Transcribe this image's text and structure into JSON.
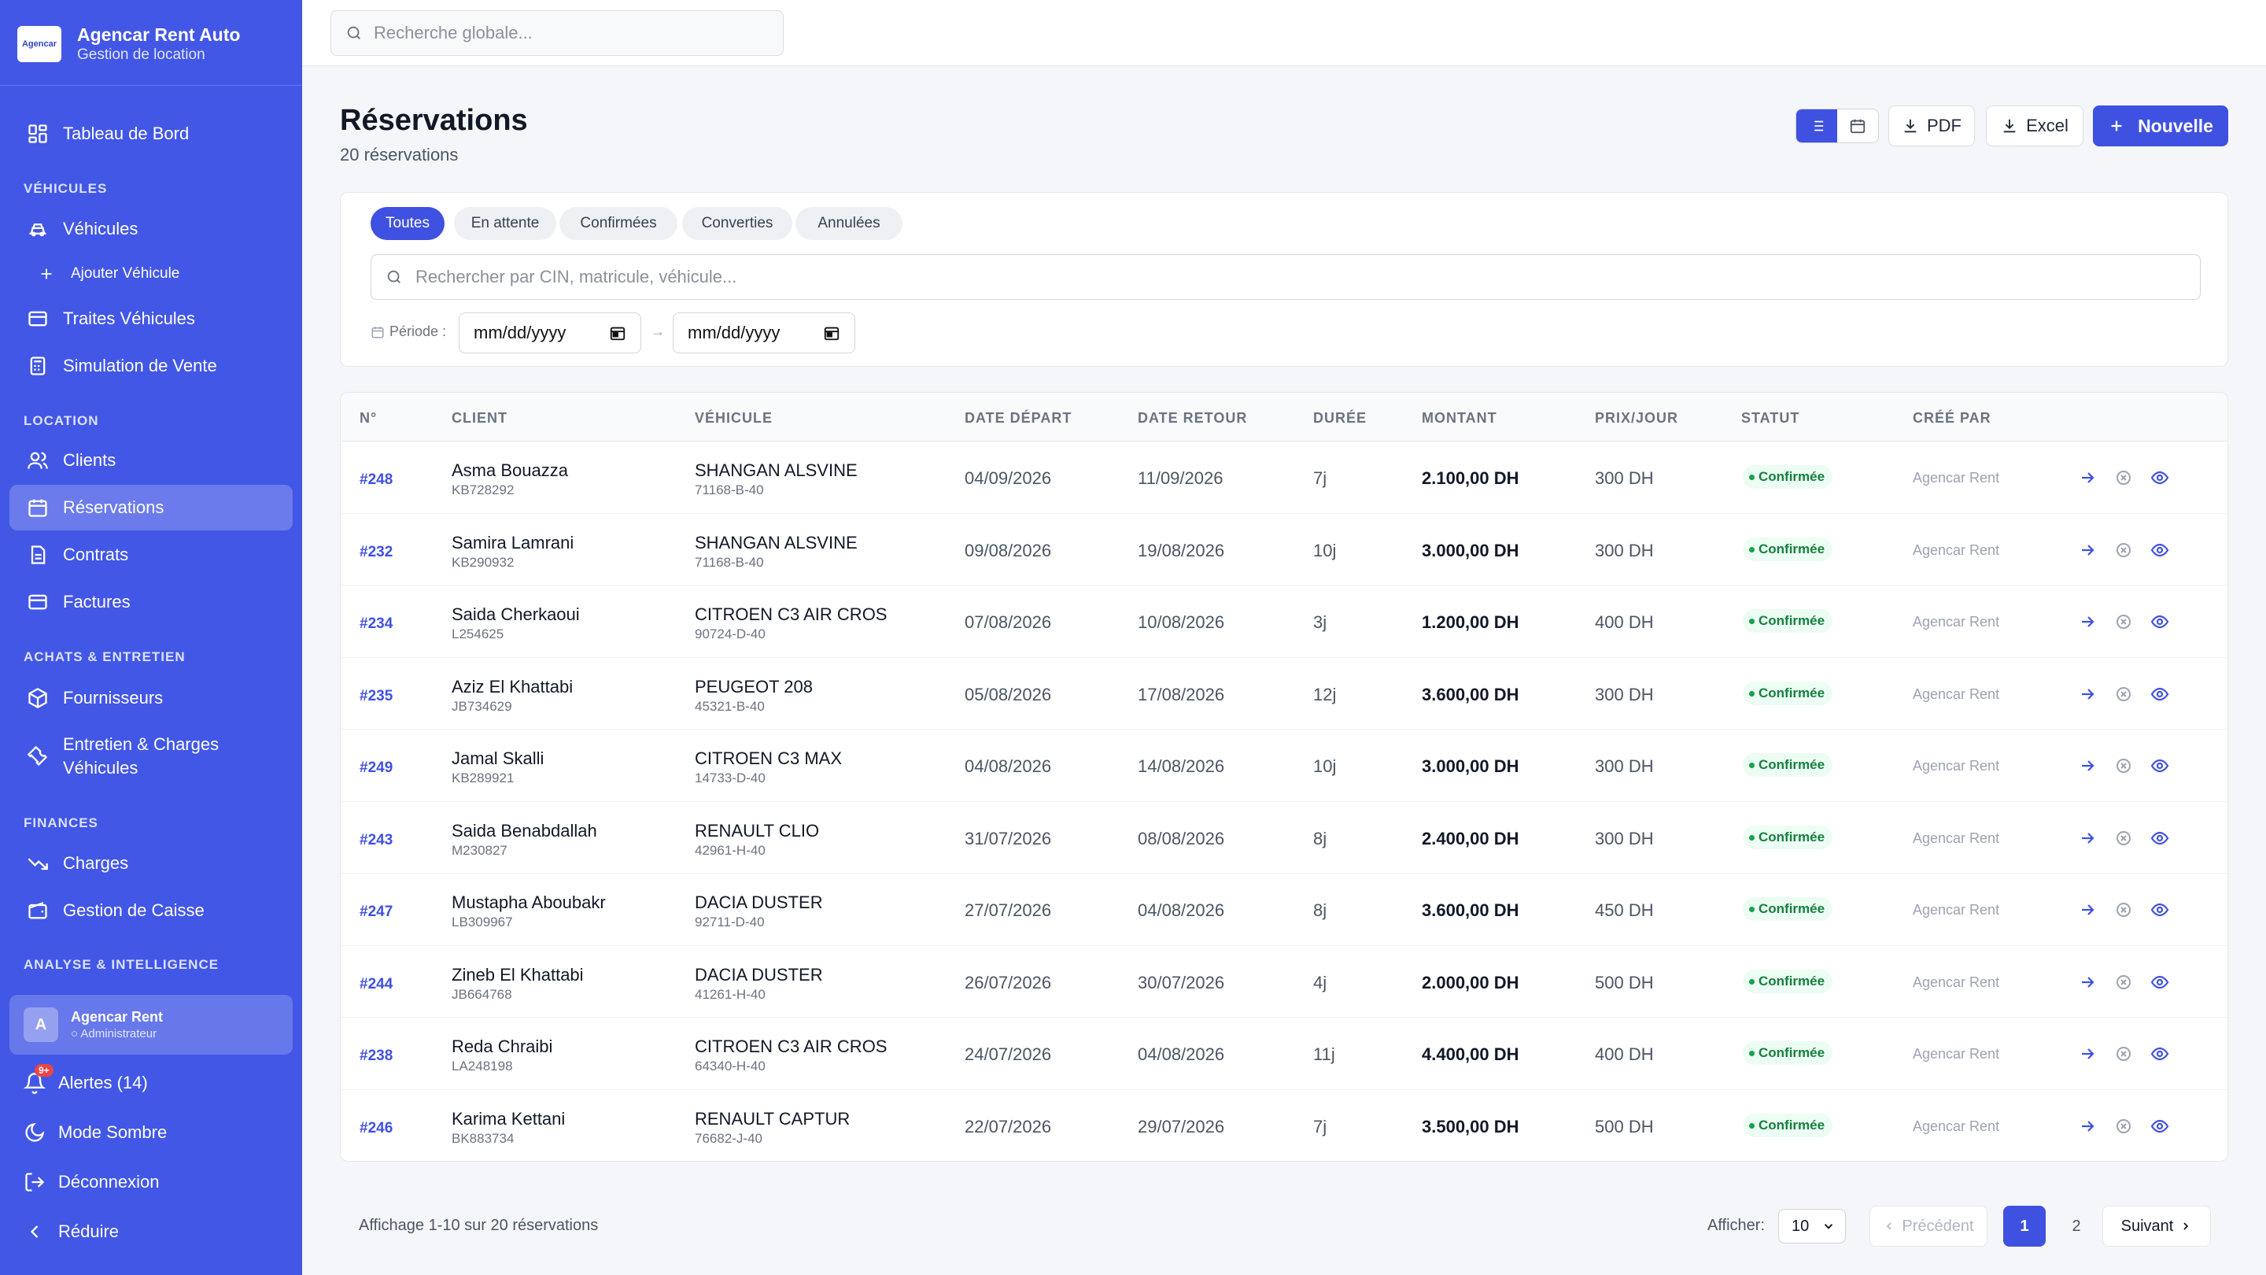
{
  "brand": {
    "title": "Agencar Rent Auto",
    "subtitle": "Gestion de location",
    "logo_text": "Agencar"
  },
  "sidebar": {
    "dashboard": "Tableau de Bord",
    "sections": {
      "vehicles": "VÉHICULES",
      "location": "LOCATION",
      "purchases": "ACHATS & ENTRETIEN",
      "finances": "FINANCES",
      "analytics": "ANALYSE & INTELLIGENCE"
    },
    "items": {
      "vehicles": "Véhicules",
      "add_vehicle": "Ajouter Véhicule",
      "traites": "Traites Véhicules",
      "simulation": "Simulation de Vente",
      "clients": "Clients",
      "reservations": "Réservations",
      "contracts": "Contrats",
      "invoices": "Factures",
      "suppliers": "Fournisseurs",
      "maintenance_line1": "Entretien & Charges",
      "maintenance_line2": "Véhicules",
      "charges": "Charges",
      "cash": "Gestion de Caisse"
    },
    "user": {
      "initial": "A",
      "name": "Agencar Rent",
      "role": "Administrateur"
    },
    "alerts": "Alertes (14)",
    "alerts_badge": "9+",
    "dark_mode": "Mode Sombre",
    "logout": "Déconnexion",
    "collapse": "Réduire"
  },
  "topbar": {
    "search_placeholder": "Recherche globale..."
  },
  "page": {
    "title": "Réservations",
    "subtitle": "20 réservations",
    "pdf": "PDF",
    "excel": "Excel",
    "new": "Nouvelle"
  },
  "filters": {
    "tabs": [
      "Toutes",
      "En attente",
      "Confirmées",
      "Converties",
      "Annulées"
    ],
    "active_tab": "Toutes",
    "search_placeholder": "Rechercher par CIN, matricule, véhicule...",
    "period_label": "Période :",
    "date_from": "mm/dd/yyyy",
    "date_to": "mm/dd/yyyy",
    "arrow": "→"
  },
  "table": {
    "columns": [
      "N°",
      "CLIENT",
      "VÉHICULE",
      "DATE DÉPART",
      "DATE RETOUR",
      "DURÉE",
      "MONTANT",
      "PRIX/JOUR",
      "STATUT",
      "CRÉÉ PAR"
    ],
    "rows": [
      {
        "num": "#248",
        "client": "Asma Bouazza",
        "cin": "KB728292",
        "vehicle": "SHANGAN ALSVINE",
        "plate": "71168-B-40",
        "start": "04/09/2026",
        "end": "11/09/2026",
        "duration": "7j",
        "amount": "2.100,00 DH",
        "price": "300 DH",
        "status": "Confirmée",
        "created_by": "Agencar Rent"
      },
      {
        "num": "#232",
        "client": "Samira Lamrani",
        "cin": "KB290932",
        "vehicle": "SHANGAN ALSVINE",
        "plate": "71168-B-40",
        "start": "09/08/2026",
        "end": "19/08/2026",
        "duration": "10j",
        "amount": "3.000,00 DH",
        "price": "300 DH",
        "status": "Confirmée",
        "created_by": "Agencar Rent"
      },
      {
        "num": "#234",
        "client": "Saida Cherkaoui",
        "cin": "L254625",
        "vehicle": "CITROEN C3 AIR CROS",
        "plate": "90724-D-40",
        "start": "07/08/2026",
        "end": "10/08/2026",
        "duration": "3j",
        "amount": "1.200,00 DH",
        "price": "400 DH",
        "status": "Confirmée",
        "created_by": "Agencar Rent"
      },
      {
        "num": "#235",
        "client": "Aziz El Khattabi",
        "cin": "JB734629",
        "vehicle": "PEUGEOT 208",
        "plate": "45321-B-40",
        "start": "05/08/2026",
        "end": "17/08/2026",
        "duration": "12j",
        "amount": "3.600,00 DH",
        "price": "300 DH",
        "status": "Confirmée",
        "created_by": "Agencar Rent"
      },
      {
        "num": "#249",
        "client": "Jamal Skalli",
        "cin": "KB289921",
        "vehicle": "CITROEN C3 MAX",
        "plate": "14733-D-40",
        "start": "04/08/2026",
        "end": "14/08/2026",
        "duration": "10j",
        "amount": "3.000,00 DH",
        "price": "300 DH",
        "status": "Confirmée",
        "created_by": "Agencar Rent"
      },
      {
        "num": "#243",
        "client": "Saida Benabdallah",
        "cin": "M230827",
        "vehicle": "RENAULT CLIO",
        "plate": "42961-H-40",
        "start": "31/07/2026",
        "end": "08/08/2026",
        "duration": "8j",
        "amount": "2.400,00 DH",
        "price": "300 DH",
        "status": "Confirmée",
        "created_by": "Agencar Rent"
      },
      {
        "num": "#247",
        "client": "Mustapha Aboubakr",
        "cin": "LB309967",
        "vehicle": "DACIA DUSTER",
        "plate": "92711-D-40",
        "start": "27/07/2026",
        "end": "04/08/2026",
        "duration": "8j",
        "amount": "3.600,00 DH",
        "price": "450 DH",
        "status": "Confirmée",
        "created_by": "Agencar Rent"
      },
      {
        "num": "#244",
        "client": "Zineb El Khattabi",
        "cin": "JB664768",
        "vehicle": "DACIA DUSTER",
        "plate": "41261-H-40",
        "start": "26/07/2026",
        "end": "30/07/2026",
        "duration": "4j",
        "amount": "2.000,00 DH",
        "price": "500 DH",
        "status": "Confirmée",
        "created_by": "Agencar Rent"
      },
      {
        "num": "#238",
        "client": "Reda Chraibi",
        "cin": "LA248198",
        "vehicle": "CITROEN C3 AIR CROS",
        "plate": "64340-H-40",
        "start": "24/07/2026",
        "end": "04/08/2026",
        "duration": "11j",
        "amount": "4.400,00 DH",
        "price": "400 DH",
        "status": "Confirmée",
        "created_by": "Agencar Rent"
      },
      {
        "num": "#246",
        "client": "Karima Kettani",
        "cin": "BK883734",
        "vehicle": "RENAULT CAPTUR",
        "plate": "76682-J-40",
        "start": "22/07/2026",
        "end": "29/07/2026",
        "duration": "7j",
        "amount": "3.500,00 DH",
        "price": "500 DH",
        "status": "Confirmée",
        "created_by": "Agencar Rent"
      }
    ]
  },
  "footer": {
    "info": "Affichage 1-10 sur 20 réservations",
    "per_page_label": "Afficher:",
    "per_page_value": "10",
    "prev": "Précédent",
    "pages": [
      "1",
      "2"
    ],
    "current_page": "1",
    "next": "Suivant"
  },
  "colors": {
    "primary": "#3f51e0",
    "sidebar": "#4257e6",
    "status_green": "#15803d",
    "alert_red": "#ef4444"
  }
}
